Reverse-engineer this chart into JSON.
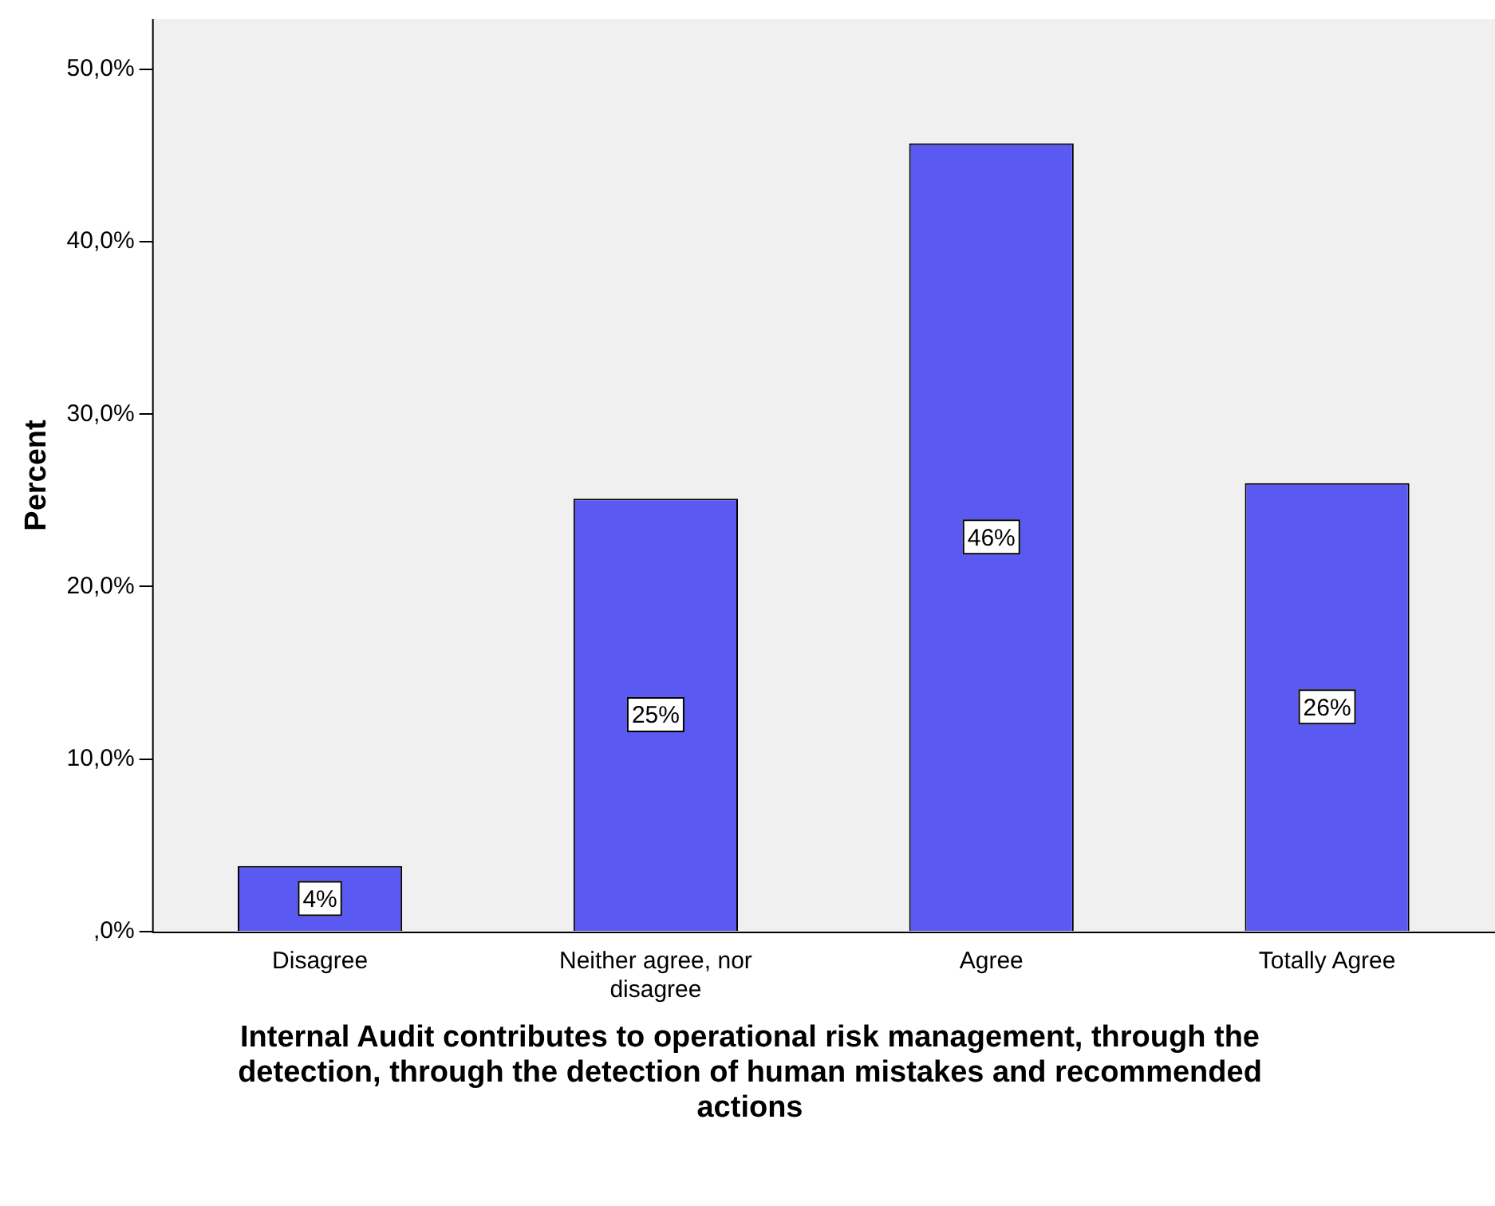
{
  "chart_data": {
    "type": "bar",
    "xlabel": "Internal Audit contributes to operational risk management, through the detection, through the detection of human mistakes and recommended actions",
    "ylabel": "Percent",
    "categories": [
      "Disagree",
      "Neither agree, nor disagree",
      "Agree",
      "Totally Agree"
    ],
    "values": [
      3.8,
      25.1,
      45.7,
      26.0
    ],
    "value_labels": [
      "4%",
      "25%",
      "46%",
      "26%"
    ],
    "color": "#5a5af2",
    "ylim": [
      0,
      52.9
    ],
    "yticks": [
      {
        "value": 0,
        "label": ",0%"
      },
      {
        "value": 10,
        "label": "10,0%"
      },
      {
        "value": 20,
        "label": "20,0%"
      },
      {
        "value": 30,
        "label": "30,0%"
      },
      {
        "value": 40,
        "label": "40,0%"
      },
      {
        "value": 50,
        "label": "50,0%"
      }
    ],
    "grid": false,
    "legend": false
  }
}
